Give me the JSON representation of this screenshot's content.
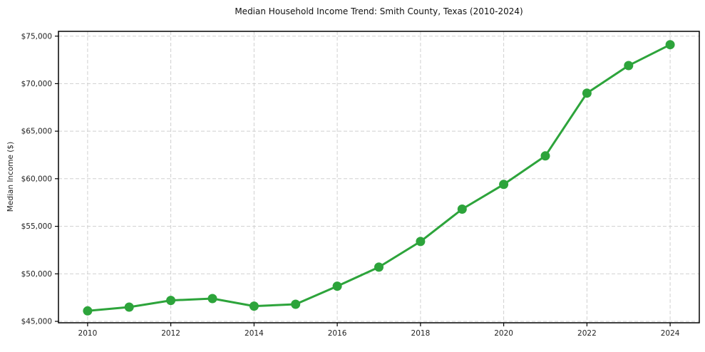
{
  "chart_data": {
    "type": "line",
    "title": "Median Household Income Trend: Smith County, Texas (2010-2024)",
    "xlabel": "",
    "ylabel": "Median Income ($)",
    "x": [
      2010,
      2011,
      2012,
      2013,
      2014,
      2015,
      2016,
      2017,
      2018,
      2019,
      2020,
      2021,
      2022,
      2023,
      2024
    ],
    "series": [
      {
        "name": "Median Household Income",
        "values": [
          46100,
          46500,
          47200,
          47400,
          46600,
          46800,
          48700,
          50700,
          53400,
          56800,
          59400,
          62400,
          69000,
          71900,
          74100
        ]
      }
    ],
    "xticks": [
      2010,
      2012,
      2014,
      2016,
      2018,
      2020,
      2022,
      2024
    ],
    "yticks": [
      45000,
      50000,
      55000,
      60000,
      65000,
      70000,
      75000
    ],
    "ytick_labels": [
      "$45,000",
      "$50,000",
      "$55,000",
      "$60,000",
      "$65,000",
      "$70,000",
      "$75,000"
    ],
    "xlim": [
      2009.3,
      2024.7
    ],
    "ylim": [
      44850,
      75500
    ],
    "grid": true,
    "grid_style": "dashed",
    "legend": "none",
    "line_color": "#2da43b",
    "grid_color": "#d0d0d0",
    "axis_color": "#000000",
    "line_width": 3,
    "marker_radius": 6.5
  }
}
